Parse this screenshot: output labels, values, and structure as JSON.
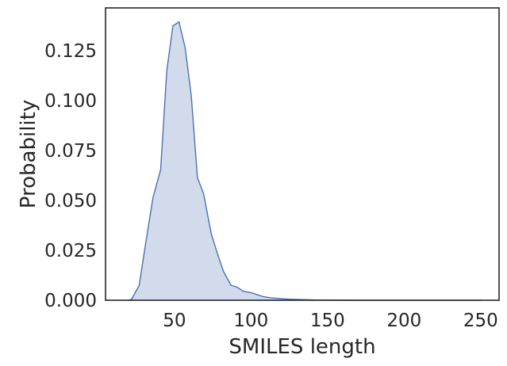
{
  "chart_data": {
    "type": "area",
    "xlabel": "SMILES length",
    "ylabel": "Probability",
    "xlim": [
      5,
      262
    ],
    "ylim": [
      0,
      0.1465
    ],
    "x_ticks": [
      50,
      100,
      150,
      200,
      250
    ],
    "y_ticks": [
      0.0,
      0.025,
      0.05,
      0.075,
      0.1,
      0.125
    ],
    "x_tick_labels": [
      "50",
      "100",
      "150",
      "200",
      "250"
    ],
    "y_tick_labels": [
      "0.000",
      "0.025",
      "0.050",
      "0.075",
      "0.100",
      "0.125"
    ],
    "grid": false,
    "legend": "none",
    "colors": {
      "line": "#4c72b0",
      "fill": "#d1dbec",
      "frame": "#262626"
    },
    "series": [
      {
        "x": [
          20,
          22,
          27,
          31,
          36,
          41,
          45,
          49,
          53,
          57,
          61,
          65,
          69,
          74,
          78,
          82,
          87,
          91,
          95,
          100,
          104,
          108,
          113,
          117,
          121,
          126,
          130,
          134,
          139,
          143,
          148,
          155,
          165,
          180,
          200,
          220,
          240,
          250
        ],
        "values": [
          0.0,
          0.0005,
          0.0075,
          0.0275,
          0.0515,
          0.0655,
          0.115,
          0.1375,
          0.1395,
          0.1265,
          0.1025,
          0.0615,
          0.0535,
          0.0335,
          0.0235,
          0.0145,
          0.0075,
          0.0065,
          0.0045,
          0.0038,
          0.0028,
          0.0018,
          0.0012,
          0.001,
          0.0007,
          0.0005,
          0.0004,
          0.0003,
          0.0002,
          0.0001,
          0.0001,
          5e-05,
          0.0,
          0.0,
          0.0,
          0.0,
          0.0,
          0.0
        ]
      }
    ]
  }
}
